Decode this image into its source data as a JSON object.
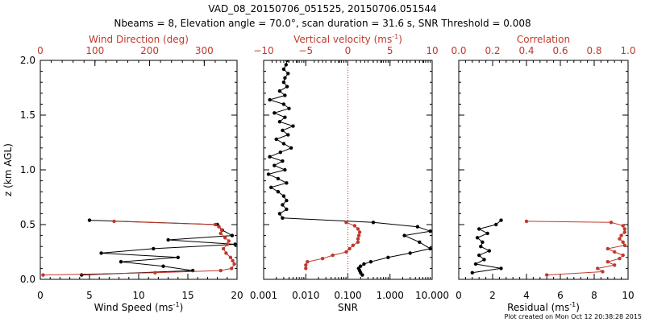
{
  "title_line1": "VAD_08_20150706_051525, 20150706.051544",
  "title_line2": "Nbeams = 8, Elevation angle = 70.0°, scan duration = 31.6 s, SNR Threshold = 0.008",
  "footer": "Plot created on Mon Oct 12 20:38:28 2015",
  "colors": {
    "primary": "#000000",
    "secondary": "#c0392b",
    "ref_line": "#c0392b"
  },
  "chart_data": [
    {
      "type": "line",
      "panel": "wind",
      "ylabel": "z (km AGL)",
      "ylim": [
        0,
        2.0
      ],
      "yticks": [
        0.0,
        0.5,
        1.0,
        1.5,
        2.0
      ],
      "ytick_labels": [
        "0.0",
        "0.5",
        "1.0",
        "1.5",
        "2.0"
      ],
      "bottom_axis": {
        "label": "Wind Speed (ms",
        "sup": "-1",
        "suffix": ")",
        "range": [
          0,
          20
        ],
        "ticks": [
          0,
          5,
          10,
          15,
          20
        ],
        "tick_labels": [
          "0",
          "5",
          "10",
          "15",
          "20"
        ],
        "scale": "linear"
      },
      "top_axis": {
        "label": "Wind Direction (deg)",
        "range": [
          0,
          360
        ],
        "ticks": [
          0,
          100,
          200,
          300
        ],
        "tick_labels": [
          "0",
          "100",
          "200",
          "300"
        ],
        "scale": "linear"
      },
      "series": [
        {
          "axis": "bottom",
          "color": "#000000",
          "z": [
            0.04,
            0.08,
            0.12,
            0.16,
            0.2,
            0.24,
            0.28,
            0.32,
            0.36,
            0.4,
            0.45,
            0.5,
            0.54
          ],
          "x": [
            4.2,
            15.5,
            12.5,
            8.2,
            14.0,
            6.2,
            11.5,
            19.8,
            13.0,
            19.5,
            18.5,
            18.0,
            5.0
          ]
        },
        {
          "axis": "top",
          "color": "#c0392b",
          "z": [
            0.04,
            0.06,
            0.08,
            0.1,
            0.14,
            0.17,
            0.2,
            0.24,
            0.28,
            0.32,
            0.35,
            0.38,
            0.42,
            0.45,
            0.48,
            0.5,
            0.53
          ],
          "x": [
            5,
            210,
            330,
            350,
            355,
            352,
            348,
            340,
            335,
            342,
            345,
            338,
            330,
            332,
            327,
            320,
            135
          ]
        }
      ]
    },
    {
      "type": "line",
      "panel": "snr",
      "ylim": [
        0,
        2.0
      ],
      "bottom_axis": {
        "label": "SNR",
        "range": [
          0.001,
          10.0
        ],
        "ticks": [
          0.001,
          0.01,
          0.1,
          1.0,
          10.0
        ],
        "tick_labels": [
          "0.001",
          "0.010",
          "0.100",
          "1.000",
          "10.000"
        ],
        "scale": "log"
      },
      "top_axis": {
        "label": "Vertical velocity (ms",
        "sup": "-1",
        "suffix": ")",
        "range": [
          -10,
          10
        ],
        "ticks": [
          -10,
          -5,
          0,
          5,
          10
        ],
        "tick_labels": [
          "−10",
          "−5",
          "0",
          "5",
          "10"
        ],
        "scale": "linear"
      },
      "ref_line": {
        "axis": "top",
        "value": 0
      },
      "series": [
        {
          "axis": "bottom",
          "color": "#000000",
          "z": [
            0.04,
            0.06,
            0.08,
            0.1,
            0.12,
            0.14,
            0.16,
            0.2,
            0.24,
            0.28,
            0.34,
            0.4,
            0.44,
            0.48,
            0.52,
            0.56,
            0.6,
            0.64,
            0.68,
            0.72,
            0.76,
            0.8,
            0.84,
            0.88,
            0.92,
            0.96,
            1.0,
            1.04,
            1.08,
            1.12,
            1.16,
            1.2,
            1.24,
            1.28,
            1.32,
            1.36,
            1.4,
            1.44,
            1.48,
            1.52,
            1.56,
            1.6,
            1.64,
            1.68,
            1.72,
            1.76,
            1.8,
            1.84,
            1.88,
            1.92,
            1.96,
            2.0
          ],
          "x": [
            0.22,
            0.2,
            0.19,
            0.18,
            0.2,
            0.24,
            0.35,
            0.9,
            3.0,
            9.0,
            5.0,
            2.2,
            9.0,
            4.5,
            0.4,
            0.0028,
            0.0024,
            0.0035,
            0.0028,
            0.0035,
            0.003,
            0.0022,
            0.0015,
            0.0035,
            0.0022,
            0.0013,
            0.0032,
            0.0018,
            0.0028,
            0.0014,
            0.0025,
            0.0045,
            0.003,
            0.002,
            0.0038,
            0.0028,
            0.005,
            0.0024,
            0.0032,
            0.0018,
            0.004,
            0.003,
            0.0014,
            0.0032,
            0.0024,
            0.0036,
            0.003,
            0.0032,
            0.0038,
            0.003,
            0.0034,
            0.0036
          ]
        },
        {
          "axis": "top",
          "color": "#c0392b",
          "z": [
            0.1,
            0.13,
            0.16,
            0.19,
            0.22,
            0.25,
            0.28,
            0.31,
            0.34,
            0.37,
            0.4,
            0.43,
            0.46,
            0.49,
            0.52
          ],
          "x": [
            -5.0,
            -5.0,
            -4.8,
            -3.0,
            -1.8,
            -0.2,
            0.2,
            0.6,
            1.2,
            1.2,
            1.3,
            1.4,
            1.2,
            0.8,
            -0.2
          ]
        }
      ]
    },
    {
      "type": "line",
      "panel": "residual",
      "ylim": [
        0,
        2.0
      ],
      "bottom_axis": {
        "label": "Residual (ms",
        "sup": "-1",
        "suffix": ")",
        "range": [
          0,
          10
        ],
        "ticks": [
          0,
          2,
          4,
          6,
          8,
          10
        ],
        "tick_labels": [
          "0",
          "2",
          "4",
          "6",
          "8",
          "10"
        ],
        "scale": "linear"
      },
      "top_axis": {
        "label": "Correlation",
        "range": [
          0,
          1.0
        ],
        "ticks": [
          0.0,
          0.2,
          0.4,
          0.6,
          0.8,
          1.0
        ],
        "tick_labels": [
          "0.0",
          "0.2",
          "0.4",
          "0.6",
          "0.8",
          "1.0"
        ],
        "scale": "linear"
      },
      "series": [
        {
          "axis": "bottom",
          "color": "#000000",
          "z": [
            0.06,
            0.1,
            0.14,
            0.18,
            0.22,
            0.26,
            0.3,
            0.34,
            0.38,
            0.42,
            0.46,
            0.5,
            0.54
          ],
          "x": [
            0.8,
            2.5,
            1.0,
            1.5,
            1.2,
            1.8,
            1.3,
            1.4,
            1.1,
            1.7,
            1.2,
            2.2,
            2.5
          ]
        },
        {
          "axis": "top",
          "color": "#c0392b",
          "z": [
            0.04,
            0.07,
            0.1,
            0.13,
            0.16,
            0.19,
            0.22,
            0.25,
            0.28,
            0.31,
            0.34,
            0.37,
            0.4,
            0.43,
            0.46,
            0.49,
            0.52,
            0.53
          ],
          "x": [
            0.52,
            0.85,
            0.82,
            0.92,
            0.88,
            0.95,
            0.97,
            0.92,
            0.88,
            0.98,
            0.97,
            0.95,
            0.96,
            0.98,
            0.98,
            0.97,
            0.9,
            0.4
          ]
        }
      ]
    }
  ]
}
